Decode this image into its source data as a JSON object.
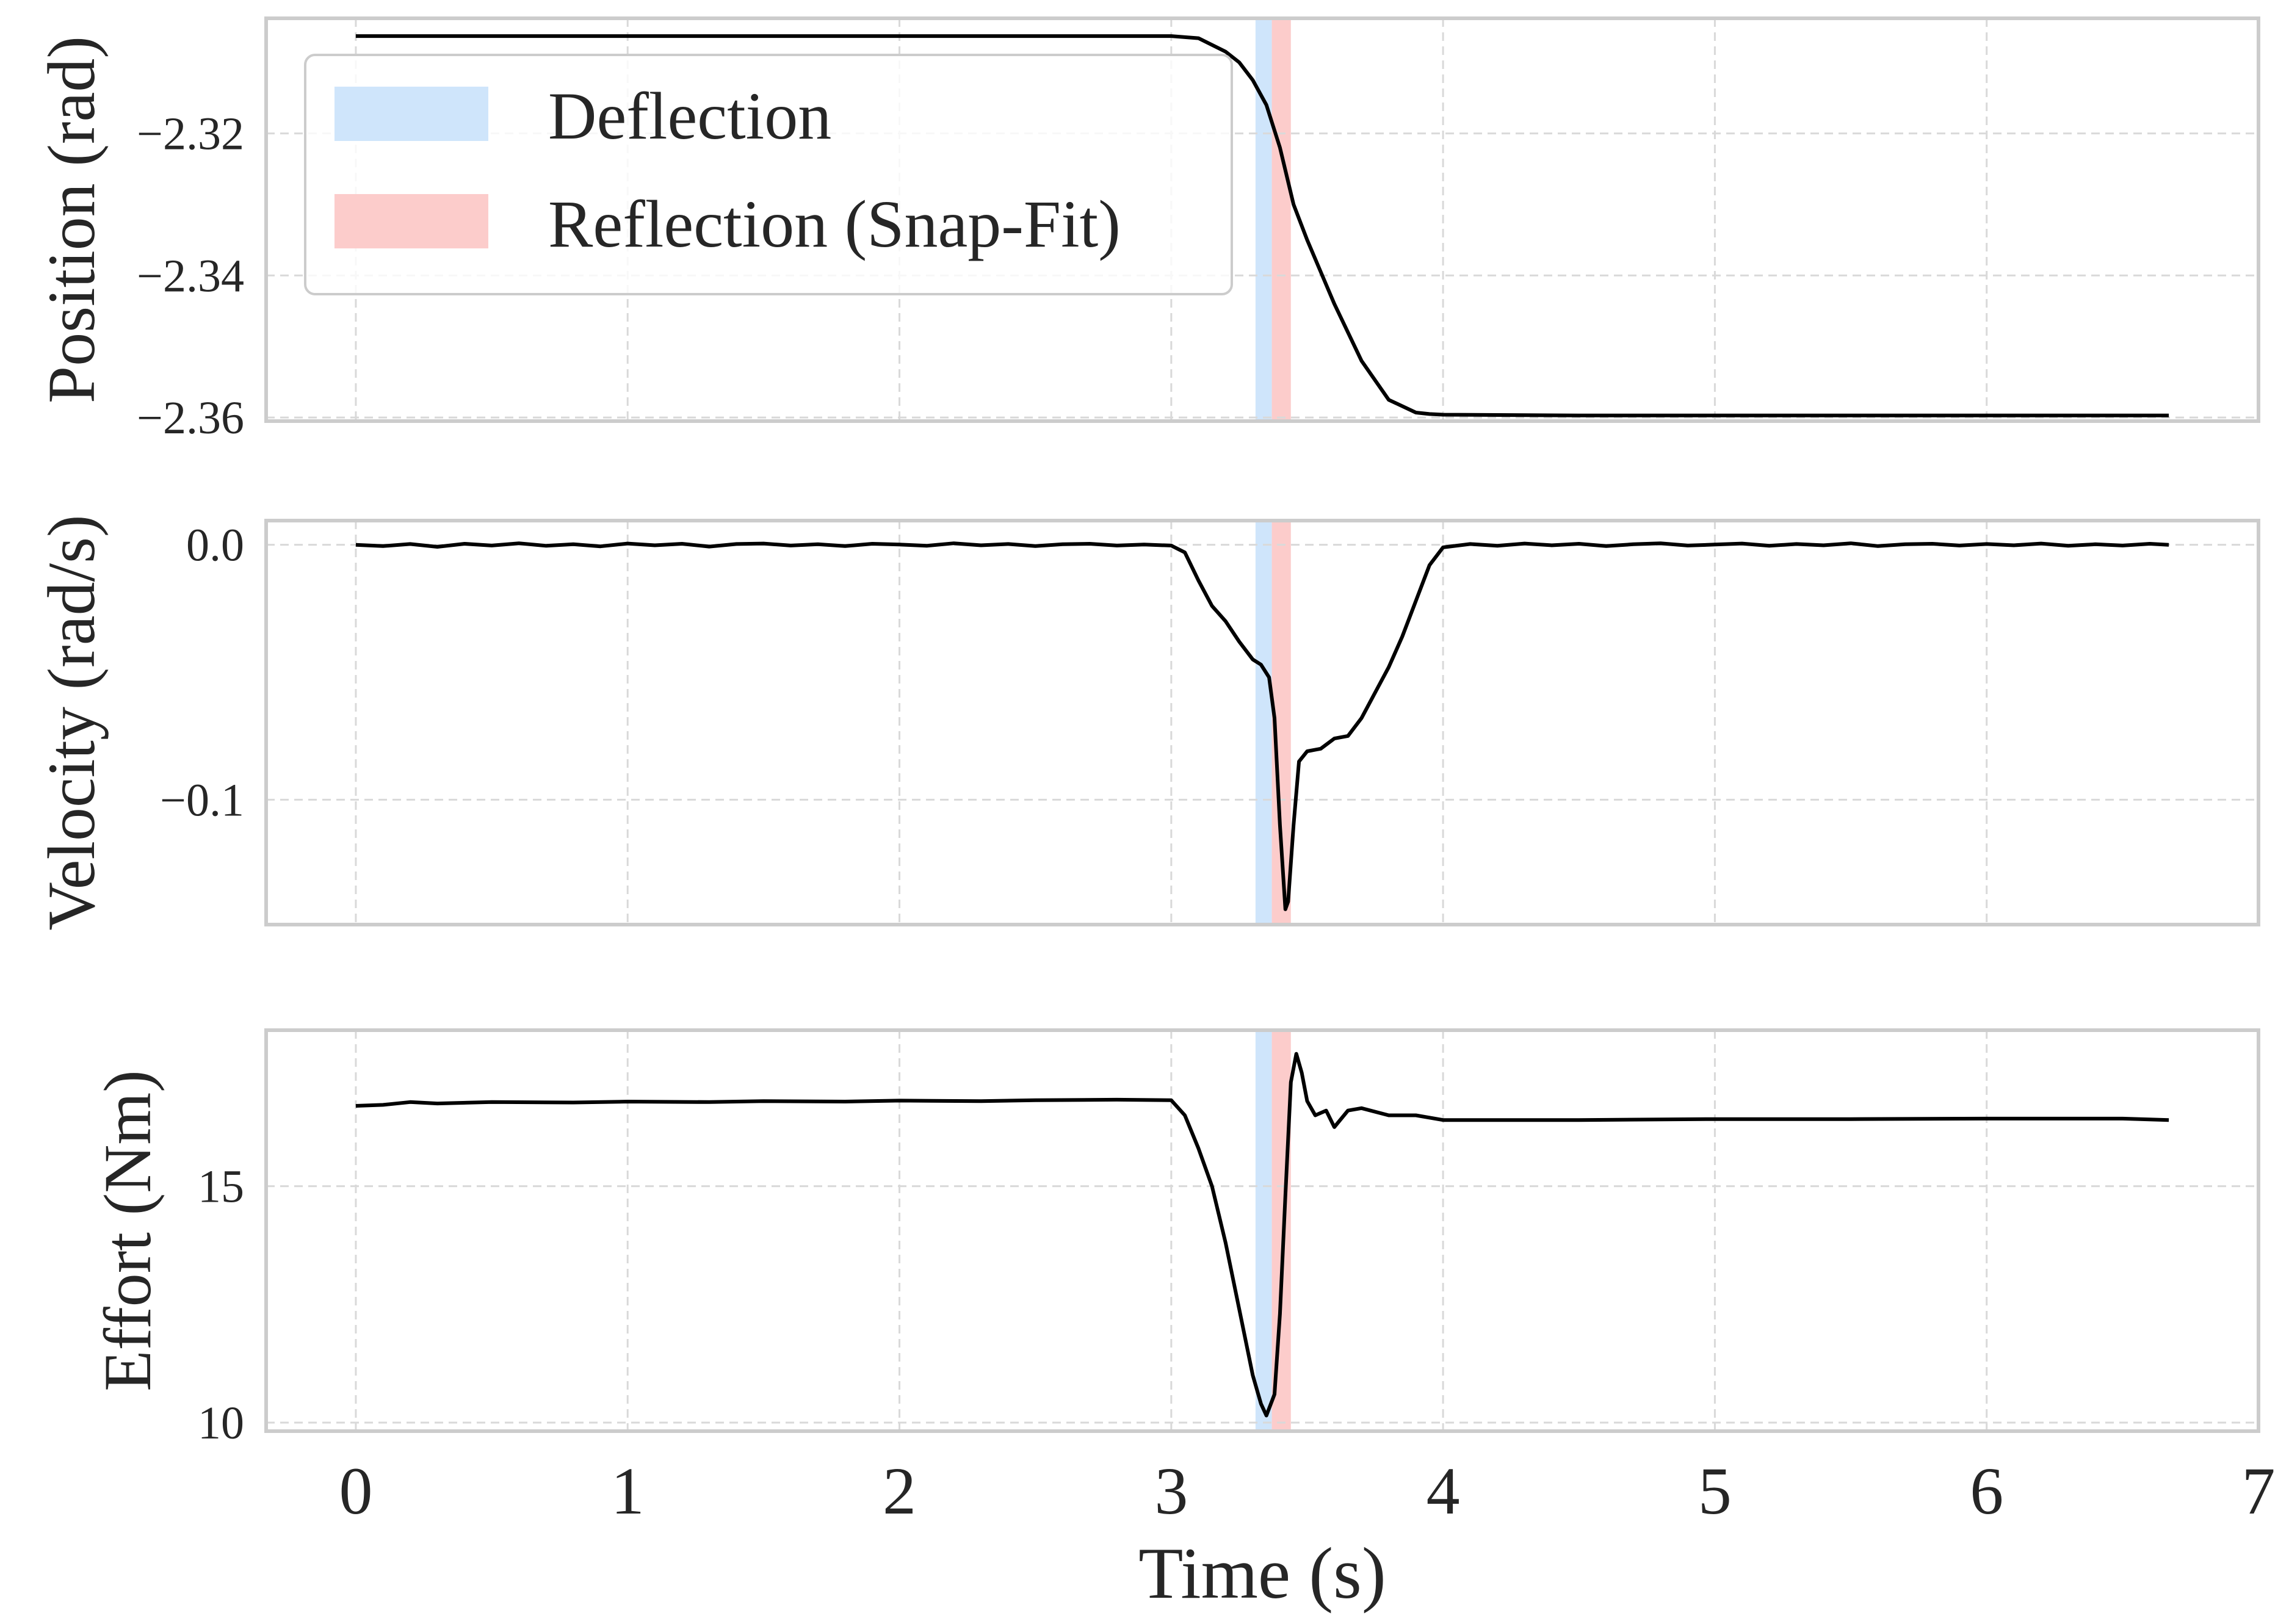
{
  "chart_data": {
    "type": "line",
    "xlabel": "Time (s)",
    "xlim": [
      -0.33,
      7.0
    ],
    "xticks": [
      0,
      1,
      2,
      3,
      4,
      5,
      6,
      7
    ],
    "x_tick_labels": [
      "0",
      "1",
      "2",
      "3",
      "4",
      "5",
      "6",
      "7"
    ],
    "colors": {
      "deflection": "#cfe5fb",
      "reflection": "#fccccb",
      "trace": "#000000",
      "frame": "#cccccc"
    },
    "legend": {
      "position": "upper-left of top panel",
      "entries": [
        {
          "key": "deflection",
          "label": "Deflection"
        },
        {
          "key": "reflection",
          "label": "Reflection (Snap-Fit)"
        }
      ]
    },
    "shaded_regions": [
      {
        "key": "deflection",
        "label": "Deflection",
        "x": [
          3.31,
          3.37
        ]
      },
      {
        "key": "reflection",
        "label": "Reflection (Snap-Fit)",
        "x": [
          3.37,
          3.44
        ]
      }
    ],
    "panels": [
      {
        "name": "position",
        "ylabel": "Position (rad)",
        "ylim": [
          -2.3605,
          -2.3038
        ],
        "yticks": [
          -2.32,
          -2.34,
          -2.36
        ],
        "y_tick_labels": [
          "−2.32",
          "−2.34",
          "−2.36"
        ],
        "series": [
          {
            "name": "position",
            "x": [
              0,
              1,
              2,
              3.0,
              3.1,
              3.2,
              3.25,
              3.3,
              3.35,
              3.4,
              3.45,
              3.5,
              3.6,
              3.7,
              3.8,
              3.9,
              3.95,
              4.0,
              4.5,
              5,
              6,
              6.67
            ],
            "y": [
              -2.3063,
              -2.3063,
              -2.3063,
              -2.3063,
              -2.3066,
              -2.3085,
              -2.31,
              -2.3125,
              -2.316,
              -2.322,
              -2.33,
              -2.335,
              -2.344,
              -2.352,
              -2.3575,
              -2.3593,
              -2.3595,
              -2.3596,
              -2.3597,
              -2.3597,
              -2.3597,
              -2.3597
            ]
          }
        ]
      },
      {
        "name": "velocity",
        "ylabel": "Velocity (rad/s)",
        "ylim": [
          -0.149,
          0.0095
        ],
        "yticks": [
          0.0,
          -0.1
        ],
        "y_tick_labels": [
          "0.0",
          "−0.1"
        ],
        "series": [
          {
            "name": "velocity",
            "x": [
              0,
              0.1,
              0.2,
              0.3,
              0.4,
              0.5,
              0.6,
              0.7,
              0.8,
              0.9,
              1.0,
              1.1,
              1.2,
              1.3,
              1.4,
              1.5,
              1.6,
              1.7,
              1.8,
              1.9,
              2.0,
              2.1,
              2.2,
              2.3,
              2.4,
              2.5,
              2.6,
              2.7,
              2.8,
              2.9,
              3.0,
              3.05,
              3.1,
              3.15,
              3.2,
              3.25,
              3.3,
              3.33,
              3.36,
              3.38,
              3.4,
              3.42,
              3.43,
              3.45,
              3.47,
              3.5,
              3.55,
              3.6,
              3.65,
              3.7,
              3.75,
              3.8,
              3.85,
              3.9,
              3.95,
              4.0,
              4.1,
              4.2,
              4.3,
              4.4,
              4.5,
              4.6,
              4.7,
              4.8,
              4.9,
              5.0,
              5.1,
              5.2,
              5.3,
              5.4,
              5.5,
              5.6,
              5.7,
              5.8,
              5.9,
              6.0,
              6.1,
              6.2,
              6.3,
              6.4,
              6.5,
              6.6,
              6.67
            ],
            "y": [
              0.0,
              -0.0005,
              0.0003,
              -0.0008,
              0.0004,
              -0.0003,
              0.0006,
              -0.0004,
              0.0002,
              -0.0006,
              0.0005,
              -0.0002,
              0.0004,
              -0.0007,
              0.0003,
              0.0005,
              -0.0003,
              0.0002,
              -0.0005,
              0.0004,
              0.0001,
              -0.0004,
              0.0006,
              -0.0002,
              0.0003,
              -0.0005,
              0.0002,
              0.0004,
              -0.0003,
              0.0001,
              -0.0003,
              -0.003,
              -0.014,
              -0.024,
              -0.03,
              -0.038,
              -0.045,
              -0.047,
              -0.052,
              -0.068,
              -0.11,
              -0.143,
              -0.14,
              -0.11,
              -0.085,
              -0.081,
              -0.08,
              -0.076,
              -0.075,
              -0.068,
              -0.058,
              -0.048,
              -0.036,
              -0.022,
              -0.008,
              -0.001,
              0.0003,
              -0.0004,
              0.0005,
              -0.0002,
              0.0004,
              -0.0005,
              0.0002,
              0.0006,
              -0.0003,
              0.0001,
              0.0005,
              -0.0004,
              0.0003,
              -0.0002,
              0.0006,
              -0.0005,
              0.0002,
              0.0004,
              -0.0003,
              0.0003,
              -0.0002,
              0.0005,
              -0.0004,
              0.0002,
              -0.0003,
              0.0004,
              0.0
            ]
          }
        ]
      },
      {
        "name": "effort",
        "ylabel": "Effort (Nm)",
        "ylim": [
          9.82,
          18.3
        ],
        "yticks": [
          15,
          10
        ],
        "y_tick_labels": [
          "15",
          "10"
        ],
        "series": [
          {
            "name": "effort",
            "x": [
              0,
              0.1,
              0.2,
              0.3,
              0.5,
              0.8,
              1.0,
              1.3,
              1.5,
              1.8,
              2.0,
              2.3,
              2.5,
              2.8,
              3.0,
              3.05,
              3.1,
              3.15,
              3.2,
              3.25,
              3.3,
              3.33,
              3.35,
              3.38,
              3.4,
              3.42,
              3.44,
              3.46,
              3.48,
              3.5,
              3.53,
              3.57,
              3.6,
              3.65,
              3.7,
              3.8,
              3.9,
              4.0,
              4.5,
              5.0,
              5.5,
              6.0,
              6.5,
              6.67
            ],
            "y": [
              16.7,
              16.72,
              16.78,
              16.75,
              16.78,
              16.77,
              16.79,
              16.78,
              16.8,
              16.79,
              16.81,
              16.8,
              16.82,
              16.83,
              16.82,
              16.5,
              15.8,
              15.0,
              13.8,
              12.4,
              11.0,
              10.4,
              10.15,
              10.6,
              12.3,
              14.8,
              17.2,
              17.8,
              17.4,
              16.8,
              16.5,
              16.6,
              16.25,
              16.6,
              16.65,
              16.5,
              16.5,
              16.4,
              16.4,
              16.42,
              16.42,
              16.43,
              16.43,
              16.4
            ]
          }
        ]
      }
    ]
  }
}
